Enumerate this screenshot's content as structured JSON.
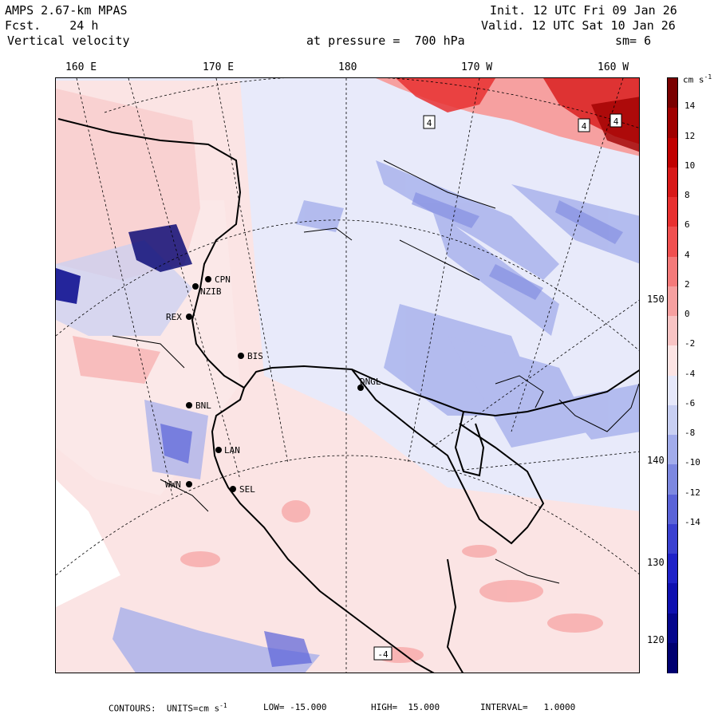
{
  "header": {
    "model": "AMPS 2.67-km MPAS",
    "forecast": "Fcst.    24 h",
    "field": "Vertical velocity",
    "init": "Init. 12 UTC Fri 09 Jan 26",
    "valid": "Valid. 12 UTC Sat 10 Jan 26",
    "pressure": "at pressure =  700 hPa",
    "smoothing": "sm= 6"
  },
  "longitude_labels": [
    "160 E",
    "170 E",
    "180",
    "170 W",
    "160 W"
  ],
  "latitude_labels": [
    "150 W",
    "140 W",
    "130 W",
    "120 W"
  ],
  "stations": [
    "CPN",
    "NZIB",
    "REX",
    "BIS",
    "BNL",
    "LAN",
    "WWN",
    "SEL",
    "DNGL"
  ],
  "contour_labels": [
    "4",
    "4",
    "4",
    "-4"
  ],
  "colorbar": {
    "unit": "cm s",
    "unit_exp": "-1",
    "ticks": [
      "14",
      "12",
      "10",
      "8",
      "6",
      "4",
      "2",
      "0",
      "-2",
      "-4",
      "-6",
      "-8",
      "-10",
      "-12",
      "-14"
    ],
    "colors": [
      "#7a0000",
      "#a00000",
      "#c00000",
      "#d81818",
      "#e83030",
      "#f05050",
      "#f47a7a",
      "#f6a0a0",
      "#f8c4c4",
      "#fce4e4",
      "#e6e8fa",
      "#c8cff2",
      "#a2aceb",
      "#7d88e0",
      "#5a63d8",
      "#3a40d0",
      "#1f22c8",
      "#0f10b0",
      "#05068c",
      "#000070"
    ]
  },
  "footer": {
    "contours": "CONTOURS:  UNITS=cm s",
    "unit_exp": "-1",
    "low": "LOW= -15.000",
    "high": "HIGH=  15.000",
    "interval": "INTERVAL=   1.0000"
  }
}
